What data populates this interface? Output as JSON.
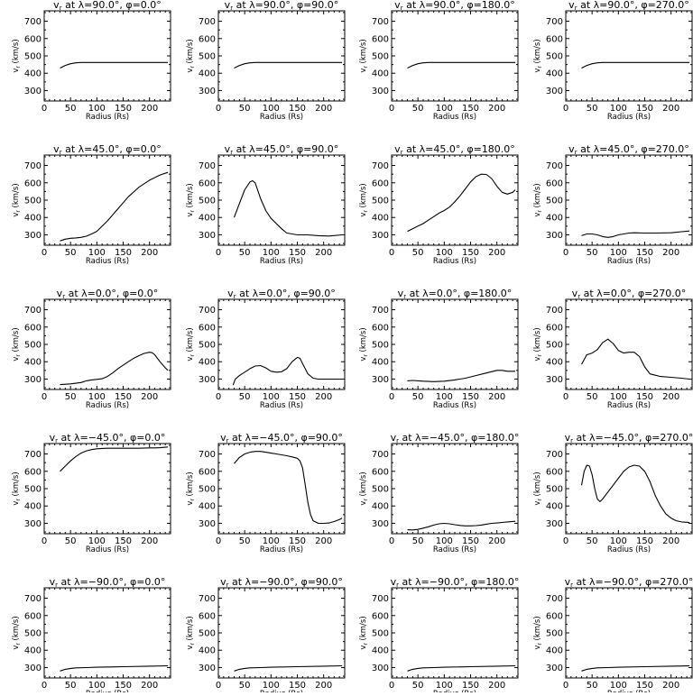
{
  "shared_axes": {
    "xlabel": "Radius (Rs)",
    "ylabel": "v_r (km/s)",
    "xlim": [
      0,
      240
    ],
    "ylim": [
      240,
      760
    ],
    "xticks": [
      0,
      50,
      100,
      150,
      200
    ],
    "yticks": [
      300,
      400,
      500,
      600,
      700
    ]
  },
  "chart_data": [
    {
      "type": "line",
      "title": "v_r at λ=90.0°, φ=0.0°",
      "lat": "90.0",
      "phi": "0.0",
      "series": [
        {
          "x": [
            30,
            40,
            50,
            60,
            70,
            100,
            150,
            200,
            235
          ],
          "y": [
            430,
            445,
            455,
            460,
            462,
            462,
            462,
            462,
            462
          ]
        }
      ]
    },
    {
      "type": "line",
      "title": "v_r at λ=90.0°, φ=90.0°",
      "lat": "90.0",
      "phi": "90.0",
      "series": [
        {
          "x": [
            30,
            40,
            50,
            60,
            70,
            100,
            150,
            200,
            235
          ],
          "y": [
            430,
            445,
            455,
            460,
            462,
            462,
            462,
            462,
            462
          ]
        }
      ]
    },
    {
      "type": "line",
      "title": "v_r at λ=90.0°, φ=180.0°",
      "lat": "90.0",
      "phi": "180.0",
      "series": [
        {
          "x": [
            30,
            40,
            50,
            60,
            70,
            100,
            150,
            200,
            235
          ],
          "y": [
            430,
            445,
            455,
            460,
            462,
            462,
            462,
            462,
            462
          ]
        }
      ]
    },
    {
      "type": "line",
      "title": "v_r at λ=90.0°, φ=270.0°",
      "lat": "90.0",
      "phi": "270.0",
      "series": [
        {
          "x": [
            30,
            40,
            50,
            60,
            70,
            100,
            150,
            200,
            235
          ],
          "y": [
            430,
            445,
            455,
            460,
            462,
            462,
            462,
            462,
            462
          ]
        }
      ]
    },
    {
      "type": "line",
      "title": "v_r at λ=45.0°, φ=0.0°",
      "lat": "45.0",
      "phi": "0.0",
      "series": [
        {
          "x": [
            30,
            40,
            50,
            60,
            70,
            80,
            90,
            100,
            120,
            140,
            160,
            180,
            200,
            220,
            235
          ],
          "y": [
            265,
            275,
            280,
            282,
            285,
            292,
            305,
            320,
            380,
            450,
            520,
            575,
            615,
            645,
            660
          ]
        }
      ]
    },
    {
      "type": "line",
      "title": "v_r at λ=45.0°, φ=90.0°",
      "lat": "45.0",
      "phi": "90.0",
      "series": [
        {
          "x": [
            30,
            40,
            50,
            60,
            65,
            70,
            80,
            90,
            100,
            110,
            120,
            130,
            140,
            150,
            170,
            190,
            210,
            235
          ],
          "y": [
            400,
            480,
            560,
            605,
            612,
            600,
            510,
            440,
            395,
            365,
            335,
            310,
            305,
            300,
            300,
            295,
            293,
            300
          ]
        }
      ]
    },
    {
      "type": "line",
      "title": "v_r at λ=45.0°, φ=180.0°",
      "lat": "45.0",
      "phi": "180.0",
      "series": [
        {
          "x": [
            30,
            40,
            50,
            60,
            70,
            80,
            90,
            100,
            110,
            120,
            130,
            140,
            150,
            160,
            170,
            180,
            190,
            200,
            210,
            220,
            230,
            235
          ],
          "y": [
            320,
            335,
            350,
            365,
            385,
            405,
            425,
            440,
            460,
            490,
            525,
            565,
            605,
            635,
            650,
            648,
            625,
            580,
            545,
            535,
            545,
            560
          ]
        }
      ]
    },
    {
      "type": "line",
      "title": "v_r at λ=45.0°, φ=270.0°",
      "lat": "45.0",
      "phi": "270.0",
      "series": [
        {
          "x": [
            30,
            40,
            50,
            60,
            70,
            80,
            90,
            100,
            110,
            120,
            130,
            150,
            170,
            200,
            220,
            235
          ],
          "y": [
            295,
            305,
            305,
            300,
            290,
            285,
            290,
            300,
            305,
            310,
            312,
            310,
            310,
            312,
            318,
            322
          ]
        }
      ]
    },
    {
      "type": "line",
      "title": "v_r at λ=0.0°, φ=0.0°",
      "lat": "0.0",
      "phi": "0.0",
      "series": [
        {
          "x": [
            30,
            50,
            70,
            80,
            90,
            100,
            110,
            120,
            130,
            140,
            150,
            160,
            170,
            180,
            190,
            200,
            205,
            210,
            220,
            230,
            235
          ],
          "y": [
            268,
            272,
            280,
            290,
            295,
            298,
            302,
            315,
            335,
            360,
            380,
            400,
            420,
            435,
            448,
            455,
            452,
            440,
            400,
            365,
            350
          ]
        }
      ]
    },
    {
      "type": "line",
      "title": "v_r at λ=0.0°, φ=90.0°",
      "lat": "0.0",
      "phi": "90.0",
      "series": [
        {
          "x": [
            28,
            32,
            40,
            50,
            60,
            70,
            80,
            90,
            100,
            110,
            120,
            130,
            140,
            150,
            155,
            160,
            170,
            180,
            190,
            200,
            220,
            235
          ],
          "y": [
            265,
            300,
            320,
            340,
            360,
            375,
            378,
            365,
            345,
            340,
            342,
            360,
            400,
            425,
            420,
            390,
            330,
            305,
            300,
            300,
            300,
            300
          ]
        }
      ]
    },
    {
      "type": "line",
      "title": "v_r at λ=0.0°, φ=180.0°",
      "lat": "0.0",
      "phi": "180.0",
      "series": [
        {
          "x": [
            30,
            40,
            60,
            80,
            100,
            120,
            140,
            160,
            180,
            200,
            210,
            220,
            235
          ],
          "y": [
            290,
            292,
            288,
            285,
            288,
            295,
            305,
            320,
            335,
            350,
            350,
            345,
            345
          ]
        }
      ]
    },
    {
      "type": "line",
      "title": "v_r at λ=0.0°, φ=270.0°",
      "lat": "0.0",
      "phi": "270.0",
      "series": [
        {
          "x": [
            30,
            40,
            50,
            60,
            70,
            80,
            90,
            100,
            110,
            120,
            130,
            140,
            150,
            160,
            170,
            180,
            200,
            220,
            235
          ],
          "y": [
            385,
            440,
            450,
            470,
            510,
            530,
            505,
            465,
            450,
            455,
            455,
            430,
            370,
            330,
            322,
            315,
            310,
            305,
            300
          ]
        }
      ]
    },
    {
      "type": "line",
      "title": "v_r at λ=−45.0°, φ=0.0°",
      "lat": "−45.0",
      "phi": "0.0",
      "series": [
        {
          "x": [
            30,
            40,
            50,
            60,
            70,
            80,
            90,
            100,
            110,
            120,
            140,
            160,
            180,
            200,
            210,
            220,
            235
          ],
          "y": [
            600,
            630,
            660,
            685,
            705,
            718,
            725,
            730,
            732,
            733,
            733,
            733,
            733,
            735,
            735,
            736,
            740
          ]
        }
      ]
    },
    {
      "type": "line",
      "title": "v_r at λ=−45.0°, φ=90.0°",
      "lat": "−45.0",
      "phi": "90.0",
      "series": [
        {
          "x": [
            30,
            40,
            50,
            60,
            70,
            80,
            90,
            100,
            110,
            120,
            130,
            140,
            150,
            155,
            160,
            165,
            170,
            175,
            180,
            190,
            200,
            210,
            220,
            230,
            235
          ],
          "y": [
            645,
            680,
            700,
            710,
            715,
            715,
            710,
            705,
            700,
            695,
            690,
            683,
            675,
            660,
            620,
            520,
            420,
            350,
            315,
            300,
            300,
            302,
            310,
            322,
            330
          ]
        }
      ]
    },
    {
      "type": "line",
      "title": "v_r at λ=−45.0°, φ=180.0°",
      "lat": "−45.0",
      "phi": "180.0",
      "series": [
        {
          "x": [
            30,
            40,
            50,
            60,
            70,
            80,
            90,
            100,
            110,
            120,
            130,
            140,
            150,
            160,
            170,
            180,
            190,
            200,
            210,
            220,
            235
          ],
          "y": [
            263,
            262,
            265,
            272,
            280,
            290,
            297,
            300,
            297,
            292,
            288,
            285,
            285,
            287,
            290,
            295,
            300,
            302,
            305,
            308,
            312
          ]
        }
      ]
    },
    {
      "type": "line",
      "title": "v_r at λ=−45.0°, φ=270.0°",
      "lat": "−45.0",
      "phi": "270.0",
      "series": [
        {
          "x": [
            30,
            35,
            40,
            45,
            50,
            55,
            60,
            65,
            70,
            80,
            90,
            100,
            110,
            120,
            130,
            140,
            150,
            160,
            170,
            180,
            190,
            200,
            210,
            220,
            235
          ],
          "y": [
            520,
            600,
            635,
            630,
            580,
            500,
            440,
            425,
            440,
            480,
            520,
            560,
            600,
            625,
            635,
            630,
            600,
            540,
            460,
            400,
            355,
            330,
            315,
            308,
            305
          ]
        }
      ]
    },
    {
      "type": "line",
      "title": "v_r at λ=−90.0°, φ=0.0°",
      "lat": "−90.0",
      "phi": "0.0",
      "series": [
        {
          "x": [
            30,
            40,
            50,
            60,
            80,
            100,
            150,
            200,
            235
          ],
          "y": [
            280,
            290,
            295,
            298,
            300,
            302,
            305,
            308,
            310
          ]
        }
      ]
    },
    {
      "type": "line",
      "title": "v_r at λ=−90.0°, φ=90.0°",
      "lat": "−90.0",
      "phi": "90.0",
      "series": [
        {
          "x": [
            30,
            40,
            50,
            60,
            80,
            100,
            150,
            200,
            235
          ],
          "y": [
            280,
            290,
            295,
            298,
            300,
            302,
            305,
            308,
            310
          ]
        }
      ]
    },
    {
      "type": "line",
      "title": "v_r at λ=−90.0°, φ=180.0°",
      "lat": "−90.0",
      "phi": "180.0",
      "series": [
        {
          "x": [
            30,
            40,
            50,
            60,
            80,
            100,
            150,
            200,
            235
          ],
          "y": [
            280,
            290,
            295,
            298,
            300,
            302,
            305,
            308,
            310
          ]
        }
      ]
    },
    {
      "type": "line",
      "title": "v_r at λ=−90.0°, φ=270.0°",
      "lat": "−90.0",
      "phi": "270.0",
      "series": [
        {
          "x": [
            30,
            40,
            50,
            60,
            80,
            100,
            150,
            200,
            235
          ],
          "y": [
            280,
            290,
            295,
            298,
            300,
            302,
            305,
            308,
            310
          ]
        }
      ]
    }
  ]
}
